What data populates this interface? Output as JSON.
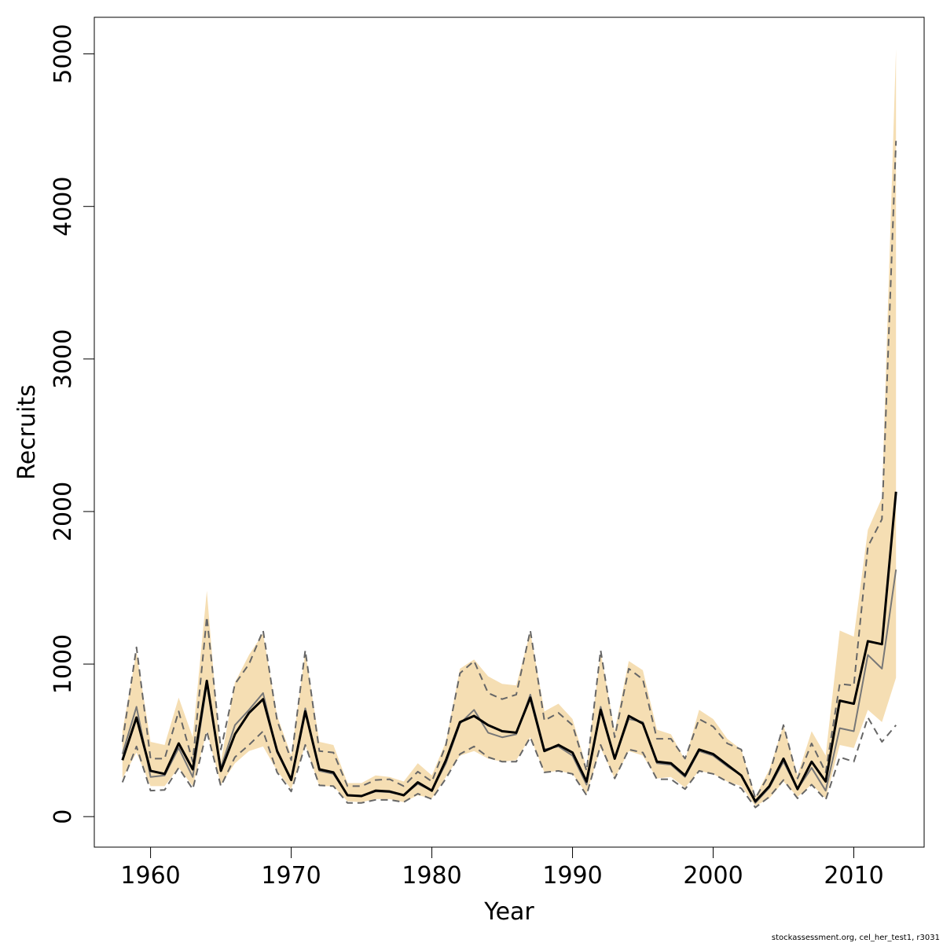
{
  "chart_data": {
    "type": "line",
    "xlabel": "Year",
    "ylabel": "Recruits",
    "xlim": [
      1956,
      2015
    ],
    "ylim": [
      -200,
      5240
    ],
    "x_ticks": [
      1960,
      1970,
      1980,
      1990,
      2000,
      2010
    ],
    "y_ticks": [
      0,
      1000,
      2000,
      3000,
      4000,
      5000
    ],
    "grid": false,
    "legend": "none",
    "colors": {
      "band": "#f5deb3",
      "estimate": "#000000",
      "alt_estimate": "#777777",
      "interval": "#666666"
    },
    "x": [
      1958,
      1959,
      1960,
      1961,
      1962,
      1963,
      1964,
      1965,
      1966,
      1967,
      1968,
      1969,
      1970,
      1971,
      1972,
      1973,
      1974,
      1975,
      1976,
      1977,
      1978,
      1979,
      1980,
      1981,
      1982,
      1983,
      1984,
      1985,
      1986,
      1987,
      1988,
      1989,
      1990,
      1991,
      1992,
      1993,
      1994,
      1995,
      1996,
      1997,
      1998,
      1999,
      2000,
      2001,
      2002,
      2003,
      2004,
      2005,
      2006,
      2007,
      2008,
      2009,
      2010,
      2011,
      2012,
      2013
    ],
    "series": [
      {
        "role": "band",
        "lower": [
          250,
          420,
          200,
          200,
          320,
          200,
          560,
          210,
          350,
          430,
          460,
          300,
          180,
          470,
          200,
          200,
          100,
          95,
          115,
          115,
          95,
          140,
          120,
          260,
          400,
          430,
          380,
          360,
          370,
          520,
          290,
          300,
          280,
          150,
          450,
          250,
          430,
          400,
          250,
          260,
          190,
          300,
          280,
          230,
          200,
          70,
          120,
          230,
          130,
          210,
          120,
          470,
          450,
          700,
          620,
          910
        ],
        "upper": [
          560,
          1080,
          490,
          470,
          780,
          520,
          1480,
          360,
          880,
          1060,
          1200,
          660,
          400,
          1080,
          490,
          470,
          220,
          220,
          270,
          260,
          230,
          350,
          270,
          490,
          970,
          1030,
          920,
          870,
          860,
          1210,
          690,
          740,
          640,
          320,
          1080,
          560,
          1020,
          960,
          570,
          540,
          370,
          700,
          640,
          510,
          440,
          130,
          310,
          600,
          270,
          560,
          400,
          1220,
          1180,
          1880,
          2090,
          5030
        ]
      },
      {
        "role": "estimate",
        "values": [
          370,
          650,
          300,
          280,
          480,
          310,
          890,
          300,
          540,
          680,
          770,
          430,
          240,
          690,
          310,
          290,
          140,
          135,
          170,
          165,
          140,
          225,
          170,
          370,
          620,
          660,
          600,
          560,
          550,
          780,
          430,
          470,
          420,
          230,
          700,
          380,
          660,
          610,
          360,
          350,
          270,
          440,
          410,
          340,
          270,
          100,
          200,
          380,
          180,
          360,
          230,
          760,
          740,
          1150,
          1130,
          2130
        ]
      },
      {
        "role": "alt_estimate",
        "values": [
          410,
          720,
          260,
          270,
          450,
          260,
          870,
          320,
          600,
          700,
          810,
          420,
          250,
          710,
          300,
          280,
          140,
          135,
          165,
          160,
          140,
          215,
          170,
          350,
          610,
          700,
          550,
          520,
          540,
          800,
          440,
          460,
          400,
          210,
          720,
          380,
          640,
          620,
          350,
          340,
          260,
          430,
          400,
          330,
          270,
          90,
          190,
          360,
          180,
          320,
          170,
          580,
          560,
          1060,
          970,
          1620
        ]
      },
      {
        "role": "interval_lower",
        "values": [
          225,
          460,
          170,
          175,
          320,
          180,
          560,
          200,
          390,
          470,
          560,
          290,
          165,
          470,
          205,
          200,
          90,
          90,
          110,
          110,
          95,
          150,
          115,
          250,
          410,
          460,
          390,
          360,
          360,
          520,
          290,
          300,
          280,
          140,
          470,
          250,
          440,
          420,
          245,
          245,
          180,
          300,
          280,
          230,
          185,
          60,
          130,
          240,
          120,
          210,
          110,
          390,
          360,
          650,
          490,
          600
        ]
      },
      {
        "role": "interval_upper",
        "values": [
          490,
          1110,
          380,
          380,
          690,
          360,
          1310,
          440,
          870,
          1000,
          1220,
          630,
          370,
          1090,
          430,
          420,
          200,
          200,
          240,
          245,
          200,
          295,
          230,
          470,
          940,
          1020,
          810,
          770,
          800,
          1220,
          630,
          680,
          600,
          300,
          1090,
          520,
          970,
          900,
          510,
          510,
          380,
          640,
          590,
          480,
          440,
          120,
          280,
          600,
          250,
          480,
          290,
          870,
          860,
          1770,
          1950,
          4430
        ]
      }
    ]
  },
  "footer": {
    "credit": "stockassessment.org, cel_her_test1, r3031"
  }
}
